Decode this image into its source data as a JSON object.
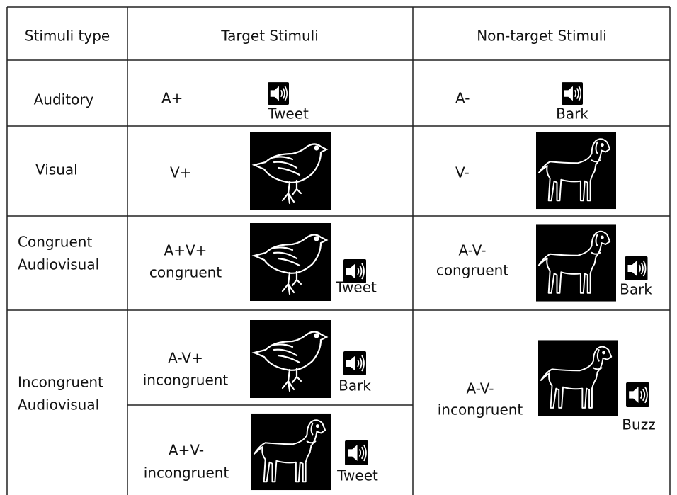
{
  "header": {
    "type": "Stimuli type",
    "target": "Target Stimuli",
    "nontarget": "Non-target Stimuli"
  },
  "rows": [
    {
      "type": [
        "Auditory"
      ],
      "target": {
        "code": [
          "A+"
        ],
        "sound": "Tweet"
      },
      "nontarget": {
        "code": [
          "A-"
        ],
        "sound": "Bark"
      }
    },
    {
      "type": [
        "Visual"
      ],
      "target": {
        "code": [
          "V+"
        ]
      },
      "nontarget": {
        "code": [
          "V-"
        ]
      }
    },
    {
      "type": [
        "Congruent",
        "Audiovisual"
      ],
      "target": {
        "code": [
          "A+V+",
          "congruent"
        ],
        "sound": "Tweet"
      },
      "nontarget": {
        "code": [
          "A-V-",
          "congruent"
        ],
        "sound": "Bark"
      }
    },
    {
      "type": [
        "Incongruent",
        "Audiovisual"
      ],
      "target": [
        {
          "code": [
            "A-V+",
            "incongruent"
          ],
          "sound": "Bark"
        },
        {
          "code": [
            "A+V-",
            "incongruent"
          ],
          "sound": "Tweet"
        }
      ],
      "nontarget": {
        "code": [
          "A-V-",
          "incongruent"
        ],
        "sound": "Buzz"
      }
    }
  ]
}
